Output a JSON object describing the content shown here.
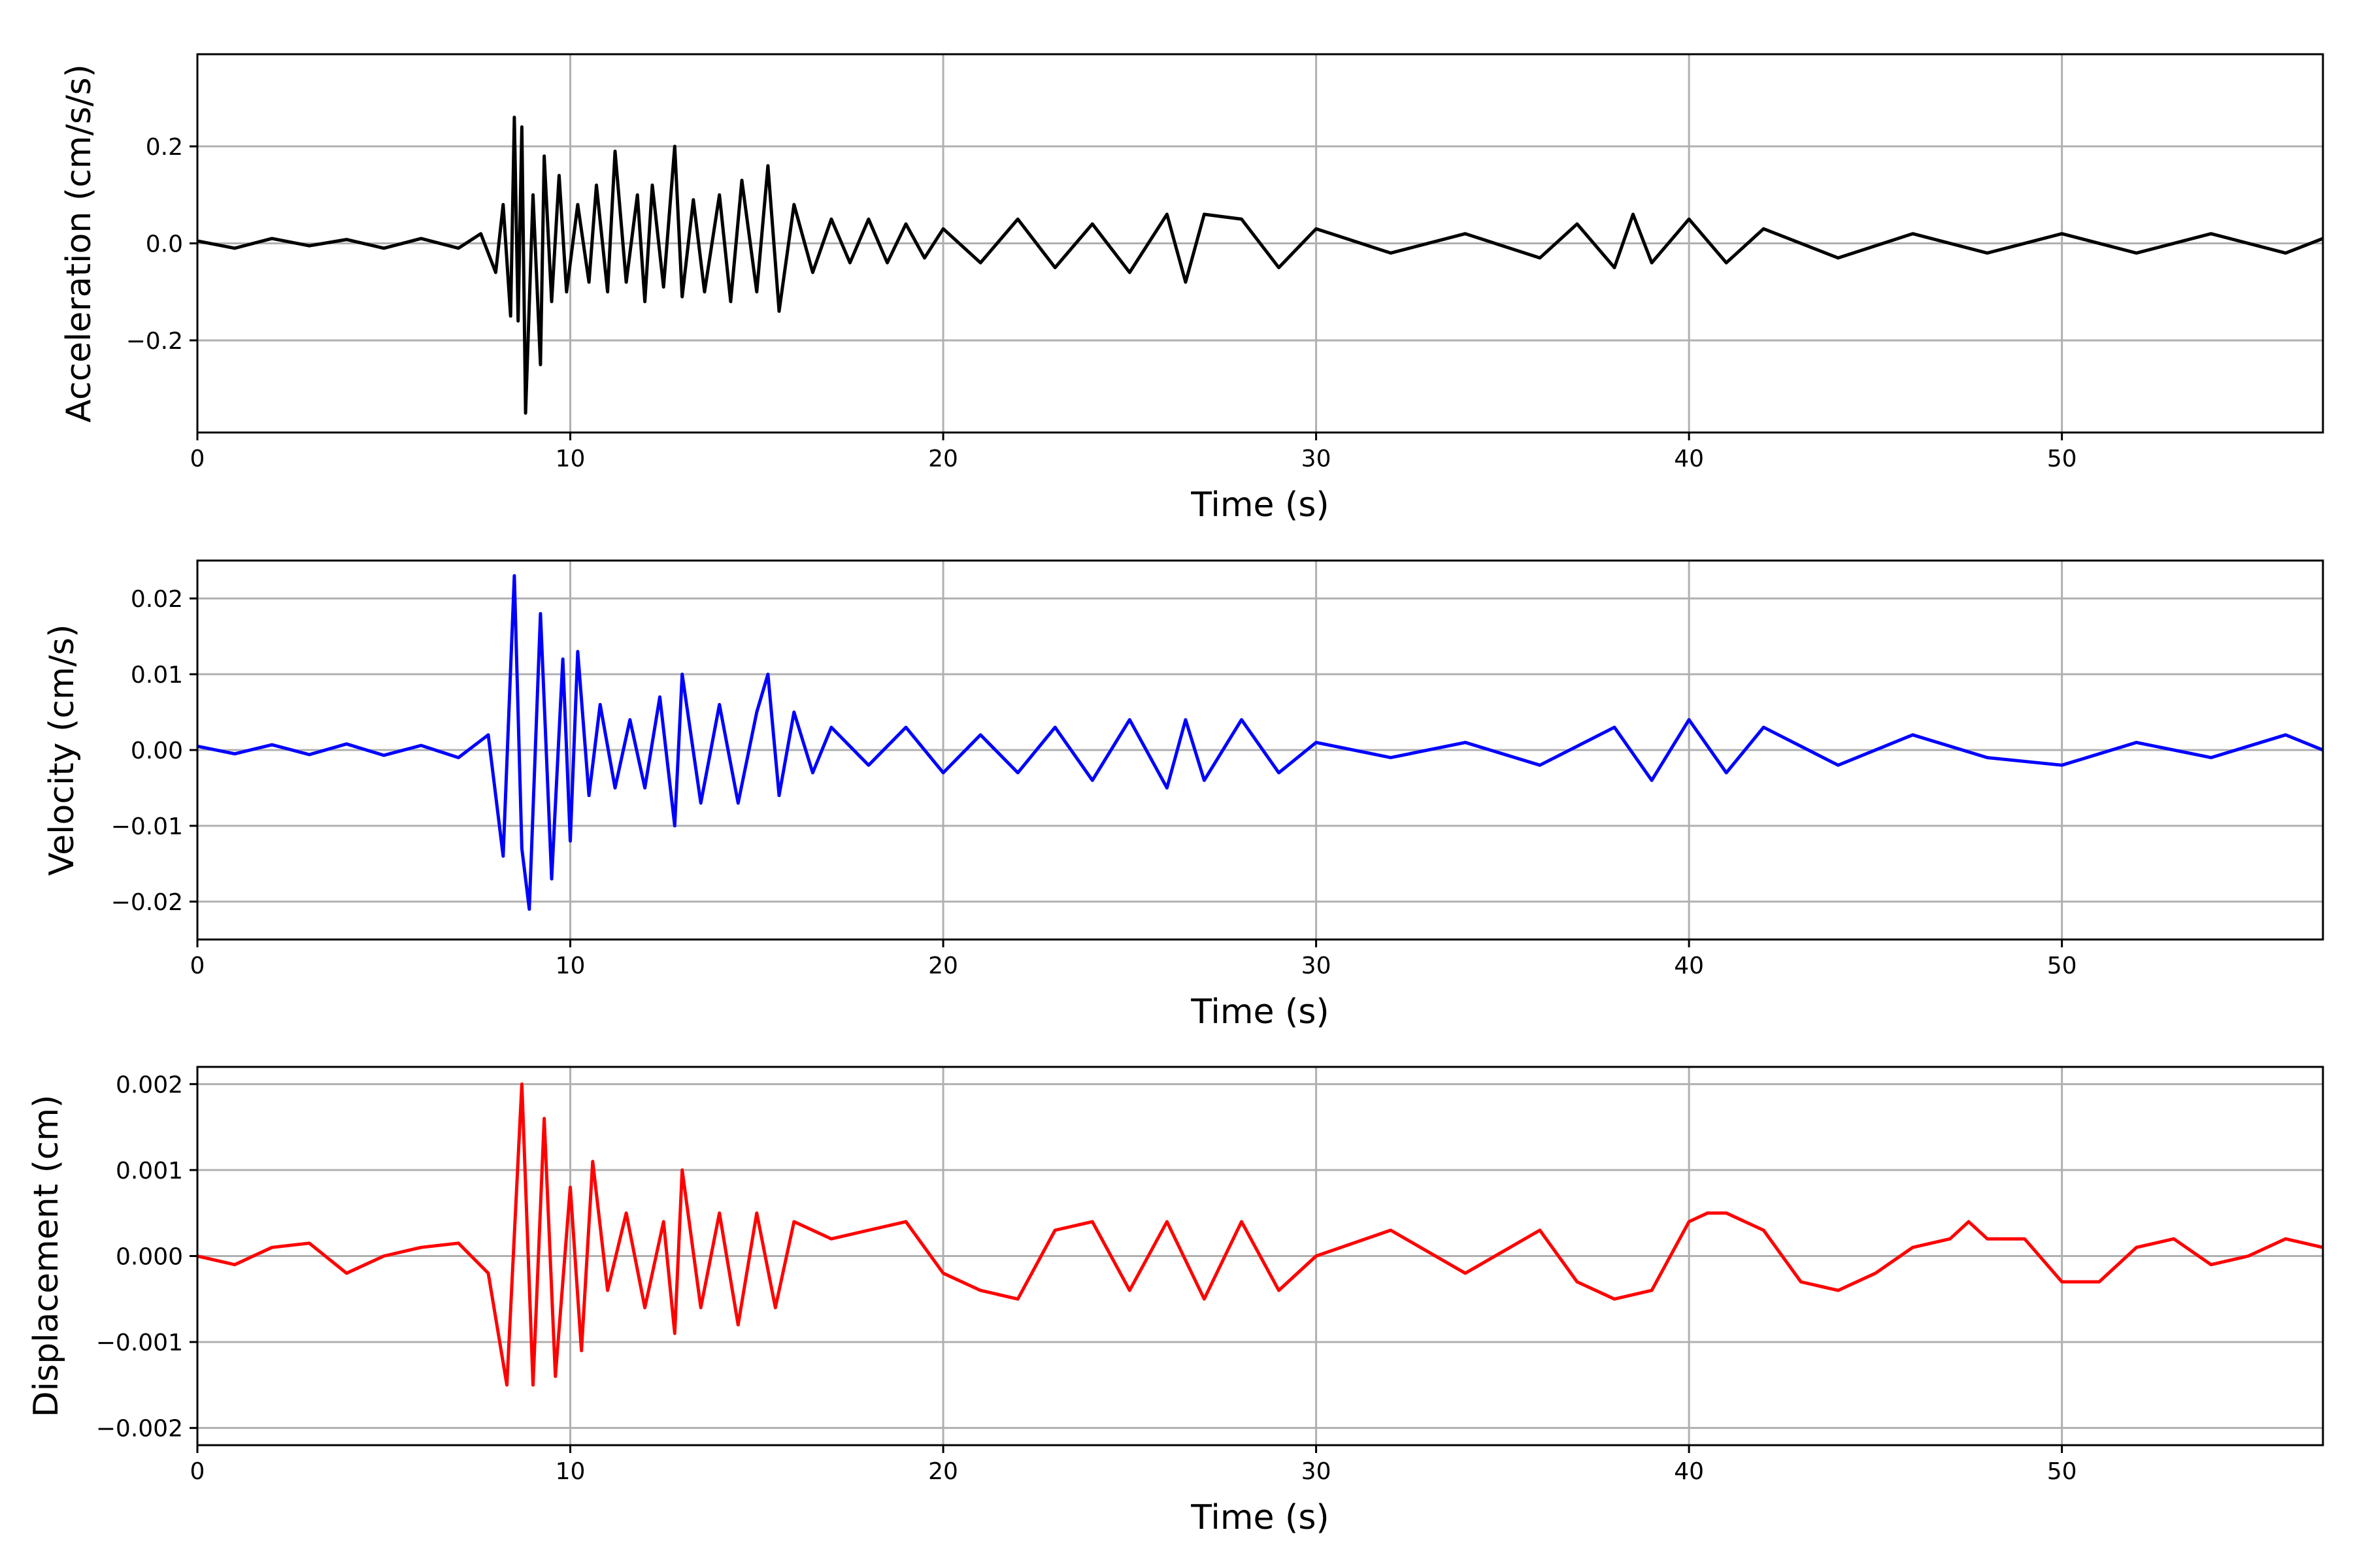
{
  "chart_data": [
    {
      "type": "line",
      "xlabel": "Time (s)",
      "ylabel": "Acceleration (cm/s/s)",
      "xlim": [
        0,
        57
      ],
      "ylim": [
        -0.39,
        0.39
      ],
      "xticks": [
        0,
        10,
        20,
        30,
        40,
        50
      ],
      "xtick_labels": [
        "0",
        "10",
        "20",
        "30",
        "40",
        "50"
      ],
      "yticks": [
        -0.2,
        0.0,
        0.2
      ],
      "ytick_labels": [
        "−0.2",
        "0.0",
        "0.2"
      ],
      "grid": true,
      "series": [
        {
          "color": "#000000",
          "x": [
            0.0,
            1.0,
            2.0,
            3.0,
            4.0,
            5.0,
            6.0,
            7.0,
            7.6,
            8.0,
            8.2,
            8.4,
            8.5,
            8.6,
            8.7,
            8.8,
            9.0,
            9.2,
            9.3,
            9.5,
            9.7,
            9.9,
            10.2,
            10.5,
            10.7,
            11.0,
            11.2,
            11.5,
            11.8,
            12.0,
            12.2,
            12.5,
            12.8,
            13.0,
            13.3,
            13.6,
            14.0,
            14.3,
            14.6,
            15.0,
            15.3,
            15.6,
            16.0,
            16.5,
            17.0,
            17.5,
            18.0,
            18.5,
            19.0,
            19.5,
            20.0,
            21.0,
            22.0,
            23.0,
            24.0,
            25.0,
            26.0,
            26.5,
            27.0,
            28.0,
            29.0,
            30.0,
            32.0,
            34.0,
            36.0,
            37.0,
            38.0,
            38.5,
            39.0,
            40.0,
            41.0,
            42.0,
            44.0,
            46.0,
            48.0,
            50.0,
            52.0,
            54.0,
            56.0,
            57.0
          ],
          "y": [
            0.005,
            -0.01,
            0.01,
            -0.005,
            0.008,
            -0.01,
            0.01,
            -0.01,
            0.02,
            -0.06,
            0.08,
            -0.15,
            0.26,
            -0.16,
            0.24,
            -0.35,
            0.1,
            -0.25,
            0.18,
            -0.12,
            0.14,
            -0.1,
            0.08,
            -0.08,
            0.12,
            -0.1,
            0.19,
            -0.08,
            0.1,
            -0.12,
            0.12,
            -0.09,
            0.2,
            -0.11,
            0.09,
            -0.1,
            0.1,
            -0.12,
            0.13,
            -0.1,
            0.16,
            -0.14,
            0.08,
            -0.06,
            0.05,
            -0.04,
            0.05,
            -0.04,
            0.04,
            -0.03,
            0.03,
            -0.04,
            0.05,
            -0.05,
            0.04,
            -0.06,
            0.06,
            -0.08,
            0.06,
            0.05,
            -0.05,
            0.03,
            -0.02,
            0.02,
            -0.03,
            0.04,
            -0.05,
            0.06,
            -0.04,
            0.05,
            -0.04,
            0.03,
            -0.03,
            0.02,
            -0.02,
            0.02,
            -0.02,
            0.02,
            -0.02,
            0.01
          ]
        }
      ]
    },
    {
      "type": "line",
      "xlabel": "Time (s)",
      "ylabel": "Velocity (cm/s)",
      "xlim": [
        0,
        57
      ],
      "ylim": [
        -0.025,
        0.025
      ],
      "xticks": [
        0,
        10,
        20,
        30,
        40,
        50
      ],
      "xtick_labels": [
        "0",
        "10",
        "20",
        "30",
        "40",
        "50"
      ],
      "yticks": [
        -0.02,
        -0.01,
        0.0,
        0.01,
        0.02
      ],
      "ytick_labels": [
        "−0.02",
        "−0.01",
        "0.00",
        "0.01",
        "0.02"
      ],
      "grid": true,
      "series": [
        {
          "color": "#0000ff",
          "x": [
            0.0,
            1.0,
            2.0,
            3.0,
            4.0,
            5.0,
            6.0,
            7.0,
            7.8,
            8.2,
            8.5,
            8.7,
            8.9,
            9.2,
            9.5,
            9.8,
            10.0,
            10.2,
            10.5,
            10.8,
            11.2,
            11.6,
            12.0,
            12.4,
            12.8,
            13.0,
            13.5,
            14.0,
            14.5,
            15.0,
            15.3,
            15.6,
            16.0,
            16.5,
            17.0,
            18.0,
            19.0,
            20.0,
            21.0,
            22.0,
            23.0,
            24.0,
            25.0,
            26.0,
            26.5,
            27.0,
            28.0,
            29.0,
            30.0,
            32.0,
            34.0,
            36.0,
            38.0,
            39.0,
            40.0,
            41.0,
            42.0,
            44.0,
            46.0,
            48.0,
            50.0,
            52.0,
            54.0,
            56.0,
            57.0
          ],
          "y": [
            0.0005,
            -0.0005,
            0.0007,
            -0.0006,
            0.0008,
            -0.0007,
            0.0006,
            -0.001,
            0.002,
            -0.014,
            0.023,
            -0.013,
            -0.021,
            0.018,
            -0.017,
            0.012,
            -0.012,
            0.013,
            -0.006,
            0.006,
            -0.005,
            0.004,
            -0.005,
            0.007,
            -0.01,
            0.01,
            -0.007,
            0.006,
            -0.007,
            0.005,
            0.01,
            -0.006,
            0.005,
            -0.003,
            0.003,
            -0.002,
            0.003,
            -0.003,
            0.002,
            -0.003,
            0.003,
            -0.004,
            0.004,
            -0.005,
            0.004,
            -0.004,
            0.004,
            -0.003,
            0.001,
            -0.001,
            0.001,
            -0.002,
            0.003,
            -0.004,
            0.004,
            -0.003,
            0.003,
            -0.002,
            0.002,
            -0.001,
            -0.002,
            0.001,
            -0.001,
            0.002,
            0.0
          ]
        }
      ]
    },
    {
      "type": "line",
      "xlabel": "Time (s)",
      "ylabel": "Displacement (cm)",
      "xlim": [
        0,
        57
      ],
      "ylim": [
        -0.0022,
        0.0022
      ],
      "xticks": [
        0,
        10,
        20,
        30,
        40,
        50
      ],
      "xtick_labels": [
        "0",
        "10",
        "20",
        "30",
        "40",
        "50"
      ],
      "yticks": [
        -0.002,
        -0.001,
        0.0,
        0.001,
        0.002
      ],
      "ytick_labels": [
        "−0.002",
        "−0.001",
        "0.000",
        "0.001",
        "0.002"
      ],
      "grid": true,
      "series": [
        {
          "color": "#ff0000",
          "x": [
            0.0,
            1.0,
            2.0,
            3.0,
            4.0,
            5.0,
            6.0,
            7.0,
            7.8,
            8.3,
            8.7,
            9.0,
            9.3,
            9.6,
            10.0,
            10.3,
            10.6,
            11.0,
            11.5,
            12.0,
            12.5,
            12.8,
            13.0,
            13.5,
            14.0,
            14.5,
            15.0,
            15.5,
            16.0,
            17.0,
            18.0,
            19.0,
            20.0,
            21.0,
            22.0,
            23.0,
            24.0,
            25.0,
            26.0,
            27.0,
            28.0,
            29.0,
            30.0,
            32.0,
            34.0,
            36.0,
            37.0,
            38.0,
            39.0,
            40.0,
            40.5,
            41.0,
            42.0,
            43.0,
            44.0,
            45.0,
            46.0,
            47.0,
            47.5,
            48.0,
            49.0,
            50.0,
            51.0,
            52.0,
            53.0,
            54.0,
            55.0,
            56.0,
            57.0
          ],
          "y": [
            0.0,
            -0.0001,
            0.0001,
            0.00015,
            -0.0002,
            0.0,
            0.0001,
            0.00015,
            -0.0002,
            -0.0015,
            0.002,
            -0.0015,
            0.0016,
            -0.0014,
            0.0008,
            -0.0011,
            0.0011,
            -0.0004,
            0.0005,
            -0.0006,
            0.0004,
            -0.0009,
            0.001,
            -0.0006,
            0.0005,
            -0.0008,
            0.0005,
            -0.0006,
            0.0004,
            0.0002,
            0.0003,
            0.0004,
            -0.0002,
            -0.0004,
            -0.0005,
            0.0003,
            0.0004,
            -0.0004,
            0.0004,
            -0.0005,
            0.0004,
            -0.0004,
            0.0,
            0.0003,
            -0.0002,
            0.0003,
            -0.0003,
            -0.0005,
            -0.0004,
            0.0004,
            0.0005,
            0.0005,
            0.0003,
            -0.0003,
            -0.0004,
            -0.0002,
            0.0001,
            0.0002,
            0.0004,
            0.0002,
            0.0002,
            -0.0003,
            -0.0003,
            0.0001,
            0.0002,
            -0.0001,
            0.0,
            0.0002,
            0.0001
          ]
        }
      ]
    }
  ]
}
